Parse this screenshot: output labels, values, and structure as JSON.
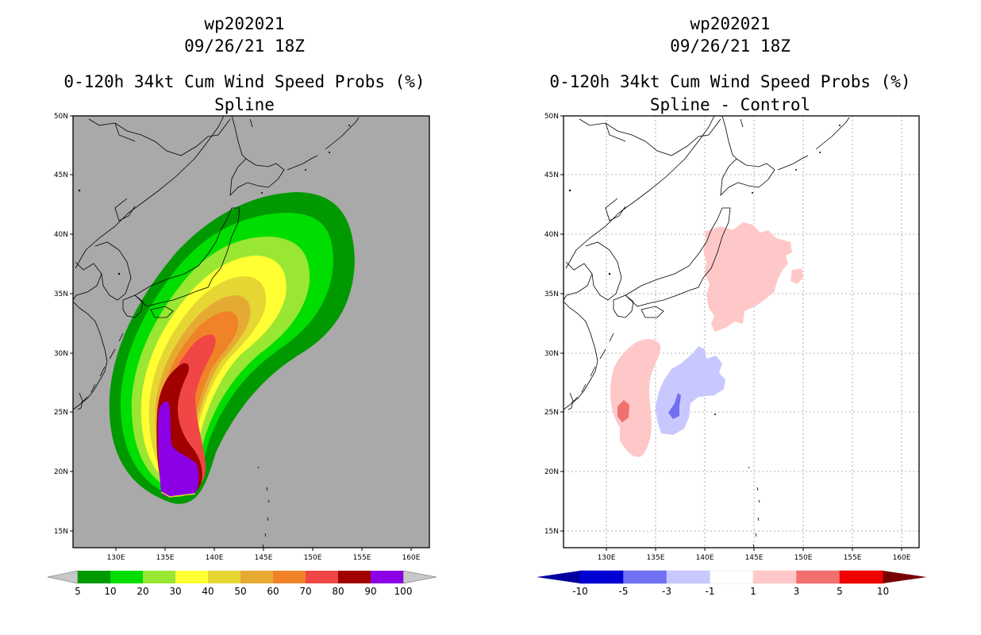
{
  "panels": [
    {
      "id": "spline",
      "header": {
        "storm_id": "wp202021",
        "datetime": "09/26/21 18Z",
        "product": "0-120h 34kt Cum Wind Speed Probs (%)",
        "subtitle": "Spline"
      },
      "background_color": "#a9a9a9",
      "lat_ticks": [
        "50N",
        "45N",
        "40N",
        "35N",
        "30N",
        "25N",
        "20N",
        "15N"
      ],
      "lon_ticks": [
        "130E",
        "135E",
        "140E",
        "145E",
        "150E",
        "155E",
        "160E"
      ],
      "colorbar": {
        "colors": [
          "#009900",
          "#00dd00",
          "#99e633",
          "#ffff33",
          "#e6d633",
          "#e6aa33",
          "#f08228",
          "#f04646",
          "#a00000",
          "#8c00e6"
        ],
        "end_color": "#c8c8c8",
        "labels": [
          "5",
          "10",
          "20",
          "30",
          "40",
          "50",
          "60",
          "70",
          "80",
          "90",
          "100"
        ]
      }
    },
    {
      "id": "spline-control",
      "header": {
        "storm_id": "wp202021",
        "datetime": "09/26/21 18Z",
        "product": "0-120h 34kt Cum Wind Speed Probs (%)",
        "subtitle": "Spline - Control"
      },
      "background_color": "#ffffff",
      "lat_ticks": [
        "50N",
        "45N",
        "40N",
        "35N",
        "30N",
        "25N",
        "20N",
        "15N"
      ],
      "lon_ticks": [
        "130E",
        "135E",
        "140E",
        "145E",
        "150E",
        "155E",
        "160E"
      ],
      "colorbar": {
        "colors": [
          "#0000d2",
          "#7070f0",
          "#c8c8ff",
          "#ffffff",
          "#ffc8c8",
          "#f07070",
          "#f00000"
        ],
        "low_end_color": "#0000a0",
        "high_end_color": "#780000",
        "labels": [
          "-10",
          "-5",
          "-3",
          "-1",
          "1",
          "3",
          "5",
          "10"
        ]
      }
    }
  ]
}
